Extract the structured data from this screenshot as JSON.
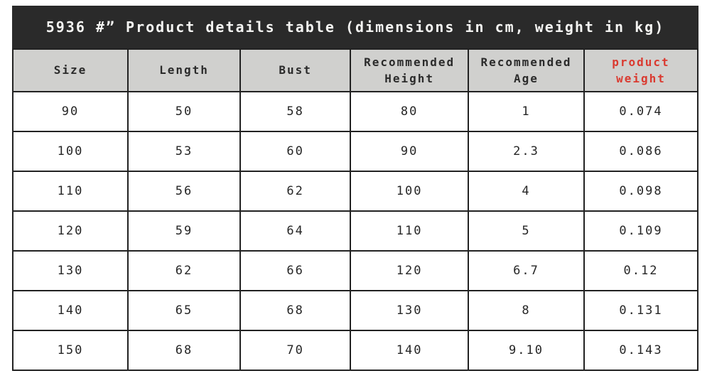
{
  "title": "5936 #” Product details table (dimensions in cm, weight in kg)",
  "table": {
    "headers": [
      {
        "label": "Size",
        "color": "default"
      },
      {
        "label": "Length",
        "color": "default"
      },
      {
        "label": "Bust",
        "color": "default"
      },
      {
        "label": "Recommended Height",
        "color": "default"
      },
      {
        "label": "Recommended Age",
        "color": "default"
      },
      {
        "label": "product weight",
        "color": "red"
      }
    ],
    "rows": [
      [
        "90",
        "50",
        "58",
        "80",
        "1",
        "0.074"
      ],
      [
        "100",
        "53",
        "60",
        "90",
        "2.3",
        "0.086"
      ],
      [
        "110",
        "56",
        "62",
        "100",
        "4",
        "0.098"
      ],
      [
        "120",
        "59",
        "64",
        "110",
        "5",
        "0.109"
      ],
      [
        "130",
        "62",
        "66",
        "120",
        "6.7",
        "0.12"
      ],
      [
        "140",
        "65",
        "68",
        "130",
        "8",
        "0.131"
      ],
      [
        "150",
        "68",
        "70",
        "140",
        "9.10",
        "0.143"
      ]
    ],
    "column_widths_percent": [
      16.8,
      16.4,
      16.1,
      17.2,
      16.9,
      16.6
    ]
  },
  "chart_data": {
    "type": "table",
    "title": "5936 #” Product details table (dimensions in cm, weight in kg)",
    "columns": [
      "Size",
      "Length",
      "Bust",
      "Recommended Height",
      "Recommended Age",
      "product weight"
    ],
    "rows": [
      [
        "90",
        "50",
        "58",
        "80",
        "1",
        "0.074"
      ],
      [
        "100",
        "53",
        "60",
        "90",
        "2.3",
        "0.086"
      ],
      [
        "110",
        "56",
        "62",
        "100",
        "4",
        "0.098"
      ],
      [
        "120",
        "59",
        "64",
        "110",
        "5",
        "0.109"
      ],
      [
        "130",
        "62",
        "66",
        "120",
        "6.7",
        "0.12"
      ],
      [
        "140",
        "65",
        "68",
        "130",
        "8",
        "0.131"
      ],
      [
        "150",
        "68",
        "70",
        "140",
        "9.10",
        "0.143"
      ]
    ]
  },
  "colors": {
    "title_bar_bg": "#2a2a2a",
    "title_text": "#f4f4f2",
    "header_bg": "#d0d0ce",
    "header_text": "#2b2b2b",
    "accent_red": "#da3a30",
    "border": "#222222",
    "cell_bg": "#ffffff",
    "cell_text": "#262626"
  }
}
